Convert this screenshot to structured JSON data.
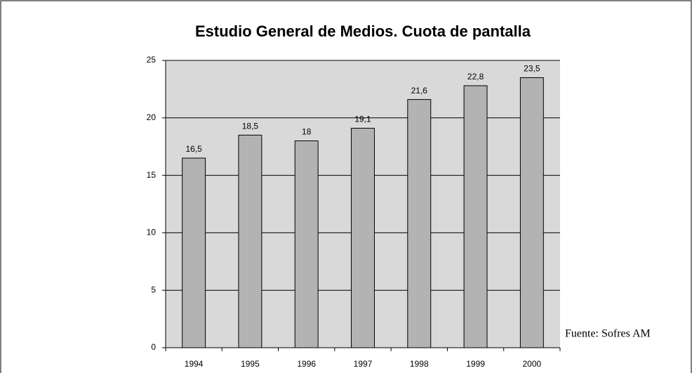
{
  "chart_data": {
    "type": "bar",
    "title": "Estudio General de Medios. Cuota de pantalla",
    "categories": [
      "1994",
      "1995",
      "1996",
      "1997",
      "1998",
      "1999",
      "2000"
    ],
    "values": [
      16.5,
      18.5,
      18,
      19.1,
      21.6,
      22.8,
      23.5
    ],
    "value_labels": [
      "16,5",
      "18,5",
      "18",
      "19,1",
      "21,6",
      "22,8",
      "23,5"
    ],
    "color": "#b3b3b3",
    "ylim": [
      0,
      25
    ],
    "yticks": [
      0,
      5,
      10,
      15,
      20,
      25
    ],
    "grid": true,
    "annotation": "Fuente: Sofres AM"
  }
}
